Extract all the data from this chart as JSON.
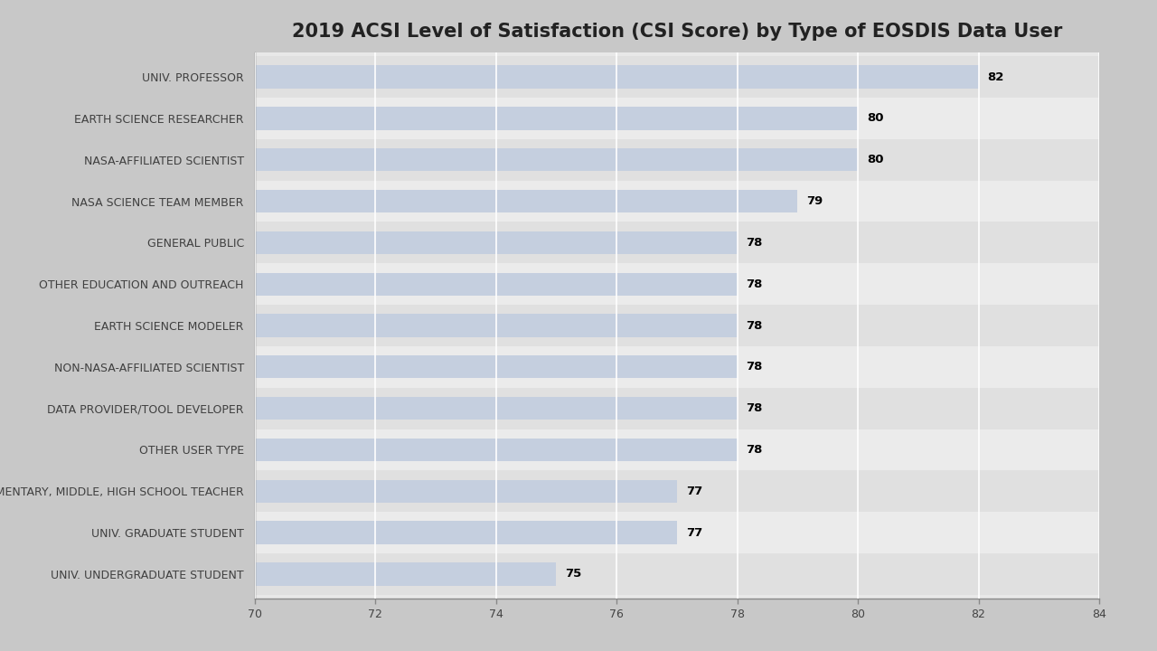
{
  "title": "2019 ACSI Level of Satisfaction (CSI Score) by Type of EOSDIS Data User",
  "categories": [
    "UNIV. PROFESSOR",
    "EARTH SCIENCE RESEARCHER",
    "NASA-AFFILIATED SCIENTIST",
    "NASA SCIENCE TEAM MEMBER",
    "GENERAL PUBLIC",
    "OTHER EDUCATION AND OUTREACH",
    "EARTH SCIENCE MODELER",
    "NON-NASA-AFFILIATED SCIENTIST",
    "DATA PROVIDER/TOOL DEVELOPER",
    "OTHER USER TYPE",
    "ELEMENTARY, MIDDLE, HIGH SCHOOL TEACHER",
    "UNIV. GRADUATE STUDENT",
    "UNIV. UNDERGRADUATE STUDENT"
  ],
  "values": [
    82,
    80,
    80,
    79,
    78,
    78,
    78,
    78,
    78,
    78,
    77,
    77,
    75
  ],
  "xlim": [
    70,
    84
  ],
  "xticks": [
    70,
    72,
    74,
    76,
    78,
    80,
    82,
    84
  ],
  "bar_color": "#c5cfdf",
  "bar_edge_color": "none",
  "outer_bg_color": "#c8c8c8",
  "plot_bg_color": "#e8e8e8",
  "row_bg_even": "#e0e0e0",
  "row_bg_odd": "#ebebeb",
  "label_fontsize": 9,
  "value_fontsize": 9.5,
  "title_fontsize": 15,
  "bar_height": 0.55
}
